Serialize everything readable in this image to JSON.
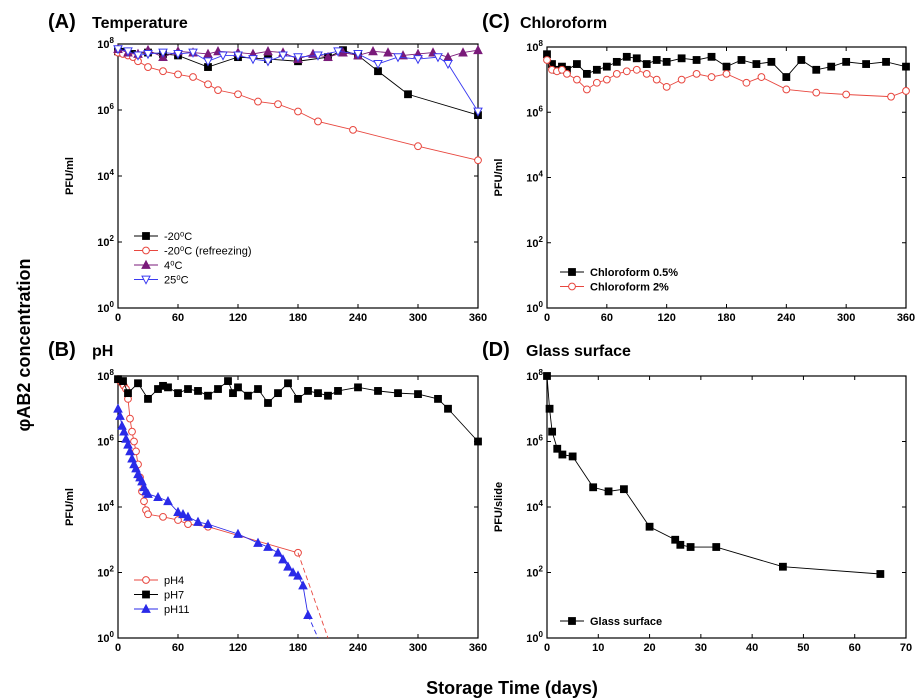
{
  "figure": {
    "ylabel": "φAB2 concentration",
    "xlabel": "Storage Time (days)"
  },
  "chart_data": [
    {
      "id": "A",
      "type": "scatter",
      "panel_letter": "(A)",
      "title": "Temperature",
      "ylabel": "PFU/ml",
      "yscale": "log",
      "ylim": [
        1,
        100000000
      ],
      "xlim": [
        0,
        360
      ],
      "xticks": [
        "0",
        "60",
        "120",
        "180",
        "240",
        "300",
        "360"
      ],
      "yticks": [
        "10^0",
        "10^2",
        "10^4",
        "10^6",
        "10^8"
      ],
      "legend_position": "bottom-left",
      "series": [
        {
          "name": "-20⁰C",
          "color": "#000000",
          "marker": "square-filled",
          "dashed": false,
          "x": [
            0,
            3,
            7,
            14,
            30,
            45,
            60,
            90,
            120,
            150,
            180,
            210,
            225,
            240,
            260,
            290,
            360
          ],
          "y": [
            60000000,
            55000000,
            58000000,
            50000000,
            55000000,
            50000000,
            45000000,
            20000000,
            40000000,
            35000000,
            30000000,
            40000000,
            65000000,
            45000000,
            15000000,
            3000000,
            700000
          ]
        },
        {
          "name": "-20⁰C (refreezing)",
          "color": "#e8473f",
          "marker": "circle-open",
          "dashed": false,
          "x": [
            0,
            5,
            10,
            15,
            20,
            30,
            45,
            60,
            75,
            90,
            100,
            120,
            140,
            160,
            180,
            200,
            235,
            300,
            360
          ],
          "y": [
            55000000,
            50000000,
            45000000,
            40000000,
            30000000,
            20000000,
            15000000,
            12000000,
            10000000,
            6000000,
            4000000,
            3000000,
            1800000,
            1500000,
            900000,
            450000,
            250000,
            80000,
            30000
          ]
        },
        {
          "name": "4⁰C",
          "color": "#7a1a7a",
          "marker": "triangle-up-filled",
          "dashed": false,
          "x": [
            0,
            10,
            20,
            30,
            45,
            60,
            75,
            90,
            100,
            120,
            135,
            150,
            165,
            180,
            195,
            210,
            225,
            240,
            255,
            270,
            285,
            300,
            315,
            330,
            345,
            360
          ],
          "y": [
            70000000,
            55000000,
            50000000,
            65000000,
            40000000,
            60000000,
            55000000,
            50000000,
            60000000,
            55000000,
            50000000,
            60000000,
            55000000,
            35000000,
            50000000,
            40000000,
            55000000,
            45000000,
            60000000,
            55000000,
            45000000,
            50000000,
            55000000,
            40000000,
            55000000,
            65000000
          ]
        },
        {
          "name": "25⁰C",
          "color": "#3a3af0",
          "marker": "triangle-down-open",
          "dashed": false,
          "x": [
            0,
            10,
            20,
            30,
            45,
            60,
            75,
            90,
            105,
            120,
            135,
            150,
            165,
            180,
            200,
            220,
            240,
            260,
            280,
            300,
            320,
            330,
            360
          ],
          "y": [
            70000000,
            60000000,
            45000000,
            50000000,
            55000000,
            50000000,
            55000000,
            30000000,
            45000000,
            45000000,
            35000000,
            30000000,
            45000000,
            40000000,
            45000000,
            60000000,
            50000000,
            25000000,
            40000000,
            35000000,
            40000000,
            25000000,
            900000
          ]
        }
      ]
    },
    {
      "id": "C",
      "type": "scatter",
      "panel_letter": "(C)",
      "title": "Chloroform",
      "ylabel": "PFU/ml",
      "yscale": "log",
      "ylim": [
        1,
        100000000
      ],
      "xlim": [
        0,
        360
      ],
      "xticks": [
        "0",
        "60",
        "120",
        "180",
        "240",
        "300",
        "360"
      ],
      "yticks": [
        "10^0",
        "10^2",
        "10^4",
        "10^6",
        "10^8"
      ],
      "legend_position": "bottom-left",
      "series": [
        {
          "name": "Chloroform 0.5%",
          "color": "#000000",
          "marker": "square-filled",
          "dashed": false,
          "x": [
            0,
            5,
            10,
            15,
            20,
            30,
            40,
            50,
            60,
            70,
            80,
            90,
            100,
            110,
            120,
            135,
            150,
            165,
            180,
            195,
            210,
            225,
            240,
            255,
            270,
            285,
            300,
            320,
            340,
            360
          ],
          "y": [
            60000000,
            30000000,
            20000000,
            25000000,
            20000000,
            30000000,
            15000000,
            20000000,
            25000000,
            35000000,
            50000000,
            45000000,
            30000000,
            40000000,
            35000000,
            45000000,
            40000000,
            50000000,
            25000000,
            40000000,
            30000000,
            35000000,
            12000000,
            40000000,
            20000000,
            25000000,
            35000000,
            30000000,
            35000000,
            25000000
          ]
        },
        {
          "name": "Chloroform 2%",
          "color": "#e8473f",
          "marker": "circle-open",
          "dashed": false,
          "x": [
            0,
            5,
            10,
            15,
            20,
            30,
            40,
            50,
            60,
            70,
            80,
            90,
            100,
            110,
            120,
            135,
            150,
            165,
            180,
            200,
            215,
            240,
            270,
            300,
            345,
            360
          ],
          "y": [
            40000000,
            20000000,
            18000000,
            20000000,
            15000000,
            10000000,
            5000000,
            8000000,
            10000000,
            15000000,
            18000000,
            20000000,
            15000000,
            10000000,
            6000000,
            10000000,
            15000000,
            12000000,
            15000000,
            8000000,
            12000000,
            5000000,
            4000000,
            3500000,
            3000000,
            4500000
          ]
        }
      ]
    },
    {
      "id": "B",
      "type": "scatter",
      "panel_letter": "(B)",
      "title": "pH",
      "ylabel": "PFU/ml",
      "yscale": "log",
      "ylim": [
        1,
        100000000
      ],
      "xlim": [
        0,
        360
      ],
      "xticks": [
        "0",
        "60",
        "120",
        "180",
        "240",
        "300",
        "360"
      ],
      "yticks": [
        "10^0",
        "10^2",
        "10^4",
        "10^6",
        "10^8"
      ],
      "legend_position": "bottom-left",
      "series": [
        {
          "name": "pH4",
          "color": "#e8473f",
          "marker": "circle-open",
          "dashed": false,
          "x": [
            0,
            2,
            4,
            6,
            8,
            10,
            12,
            14,
            16,
            18,
            20,
            22,
            24,
            26,
            28,
            30,
            45,
            60,
            70,
            90,
            180
          ],
          "y": [
            80000000,
            70000000,
            60000000,
            50000000,
            40000000,
            20000000,
            5000000,
            2000000,
            1000000,
            500000,
            200000,
            80000,
            30000,
            15000,
            8000,
            6000,
            5000,
            4000,
            3000,
            2500,
            400
          ]
        },
        {
          "name": "pH7",
          "color": "#000000",
          "marker": "square-filled",
          "dashed": false,
          "x": [
            0,
            5,
            10,
            20,
            30,
            40,
            45,
            50,
            60,
            70,
            80,
            90,
            100,
            110,
            115,
            120,
            130,
            140,
            150,
            160,
            170,
            180,
            190,
            200,
            210,
            220,
            240,
            260,
            280,
            300,
            320,
            330,
            360
          ],
          "y": [
            80000000,
            70000000,
            30000000,
            60000000,
            20000000,
            40000000,
            50000000,
            45000000,
            30000000,
            40000000,
            35000000,
            25000000,
            40000000,
            70000000,
            30000000,
            45000000,
            25000000,
            40000000,
            15000000,
            30000000,
            60000000,
            20000000,
            35000000,
            30000000,
            25000000,
            35000000,
            45000000,
            35000000,
            30000000,
            28000000,
            20000000,
            10000000,
            1000000
          ]
        },
        {
          "name": "pH11",
          "color": "#2a2ae8",
          "marker": "triangle-up-filled",
          "dashed": false,
          "x": [
            0,
            2,
            4,
            6,
            8,
            10,
            12,
            14,
            16,
            18,
            20,
            22,
            24,
            26,
            28,
            30,
            40,
            50,
            60,
            65,
            70,
            80,
            90,
            120,
            140,
            150,
            160,
            165,
            170,
            175,
            180,
            185,
            190
          ],
          "y": [
            10000000,
            6000000,
            3000000,
            2000000,
            1200000,
            800000,
            500000,
            300000,
            200000,
            150000,
            100000,
            80000,
            60000,
            40000,
            30000,
            25000,
            20000,
            15000,
            7000,
            6000,
            5000,
            3500,
            3000,
            1500,
            800,
            600,
            400,
            250,
            150,
            100,
            80,
            40,
            5
          ]
        },
        {
          "name": "",
          "color": "#e8473f",
          "marker": "none",
          "dashed": true,
          "x": [
            180,
            210
          ],
          "y": [
            400,
            1
          ]
        },
        {
          "name": "",
          "color": "#2a2ae8",
          "marker": "none",
          "dashed": true,
          "x": [
            190,
            200
          ],
          "y": [
            5,
            1
          ]
        }
      ]
    },
    {
      "id": "D",
      "type": "scatter",
      "panel_letter": "(D)",
      "title": "Glass surface",
      "ylabel": "PFU/slide",
      "yscale": "log",
      "ylim": [
        1,
        100000000
      ],
      "xlim": [
        0,
        70
      ],
      "xticks": [
        "0",
        "10",
        "20",
        "30",
        "40",
        "50",
        "60",
        "70"
      ],
      "yticks": [
        "10^0",
        "10^2",
        "10^4",
        "10^6",
        "10^8"
      ],
      "legend_position": "bottom-left",
      "series": [
        {
          "name": "Glass surface",
          "color": "#000000",
          "marker": "square-filled",
          "dashed": false,
          "x": [
            0,
            0.5,
            1,
            2,
            3,
            5,
            9,
            12,
            15,
            20,
            25,
            26,
            28,
            33,
            46,
            65
          ],
          "y": [
            100000000,
            10000000,
            2000000,
            600000,
            400000,
            350000,
            40000,
            30000,
            35000,
            2500,
            1000,
            700,
            600,
            600,
            150,
            90
          ]
        }
      ]
    }
  ]
}
